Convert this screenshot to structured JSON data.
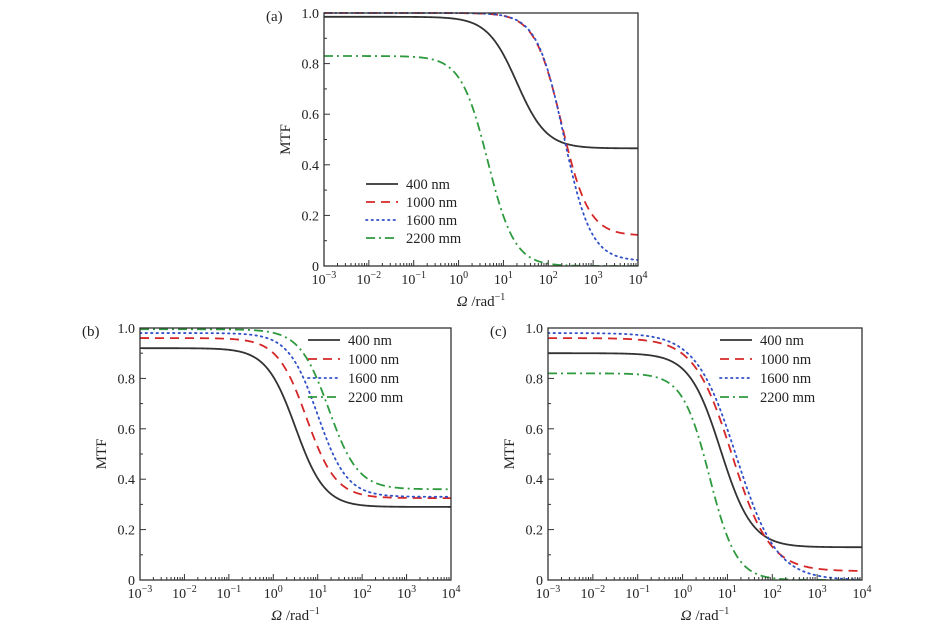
{
  "chart_data": [
    {
      "type": "line",
      "panel_label": "(a)",
      "ylabel": "MTF",
      "xlabel_symbol": "Ω",
      "xlabel_unit": " /rad",
      "xlabel_exp": "−1",
      "x_scale": "log",
      "xlim": [
        0.001,
        10000
      ],
      "ylim": [
        0,
        1.0
      ],
      "xticks": [
        {
          "base": "10",
          "exp": "−3"
        },
        {
          "base": "10",
          "exp": "−2"
        },
        {
          "base": "10",
          "exp": "−1"
        },
        {
          "base": "10",
          "exp": "0"
        },
        {
          "base": "10",
          "exp": "1"
        },
        {
          "base": "10",
          "exp": "2"
        },
        {
          "base": "10",
          "exp": "3"
        },
        {
          "base": "10",
          "exp": "4"
        }
      ],
      "yticks": [
        "0",
        "0.2",
        "0.4",
        "0.6",
        "0.8",
        "1.0"
      ],
      "legend_position": "lower-left",
      "series": [
        {
          "name": "400 nm",
          "style": "solid",
          "color": "#333333",
          "top": 0.985,
          "bottom": 0.465,
          "center_log10": 1.3,
          "width_decades": 0.33
        },
        {
          "name": "1000 nm",
          "style": "dash",
          "color": "#d62728",
          "top": 1.0,
          "bottom": 0.12,
          "center_log10": 2.3,
          "width_decades": 0.3
        },
        {
          "name": "1600 nm",
          "style": "dot",
          "color": "#3050c8",
          "top": 1.0,
          "bottom": 0.02,
          "center_log10": 2.35,
          "width_decades": 0.3
        },
        {
          "name": "2200 mm",
          "style": "dashdot",
          "color": "#2e9a3e",
          "top": 0.83,
          "bottom": 0.0,
          "center_log10": 0.65,
          "width_decades": 0.3
        }
      ]
    },
    {
      "type": "line",
      "panel_label": "(b)",
      "ylabel": "MTF",
      "xlabel_symbol": "Ω",
      "xlabel_unit": " /rad",
      "xlabel_exp": "−1",
      "x_scale": "log",
      "xlim": [
        0.001,
        10000
      ],
      "ylim": [
        0,
        1.0
      ],
      "xticks": [
        {
          "base": "10",
          "exp": "−3"
        },
        {
          "base": "10",
          "exp": "−2"
        },
        {
          "base": "10",
          "exp": "−1"
        },
        {
          "base": "10",
          "exp": "0"
        },
        {
          "base": "10",
          "exp": "1"
        },
        {
          "base": "10",
          "exp": "2"
        },
        {
          "base": "10",
          "exp": "3"
        },
        {
          "base": "10",
          "exp": "4"
        }
      ],
      "yticks": [
        "0",
        "0.2",
        "0.4",
        "0.6",
        "0.8",
        "1.0"
      ],
      "legend_position": "top-right",
      "series": [
        {
          "name": "400 nm",
          "style": "solid",
          "color": "#333333",
          "top": 0.92,
          "bottom": 0.29,
          "center_log10": 0.5,
          "width_decades": 0.33
        },
        {
          "name": "1000 nm",
          "style": "dash",
          "color": "#d62728",
          "top": 0.96,
          "bottom": 0.325,
          "center_log10": 0.75,
          "width_decades": 0.33
        },
        {
          "name": "1600 nm",
          "style": "dot",
          "color": "#3050c8",
          "top": 0.98,
          "bottom": 0.33,
          "center_log10": 1.0,
          "width_decades": 0.33
        },
        {
          "name": "2200 mm",
          "style": "dashdot",
          "color": "#2e9a3e",
          "top": 0.995,
          "bottom": 0.36,
          "center_log10": 1.25,
          "width_decades": 0.33
        }
      ]
    },
    {
      "type": "line",
      "panel_label": "(c)",
      "ylabel": "MTF",
      "xlabel_symbol": "Ω",
      "xlabel_unit": " /rad",
      "xlabel_exp": "−1",
      "x_scale": "log",
      "xlim": [
        0.001,
        10000
      ],
      "ylim": [
        0,
        1.0
      ],
      "xticks": [
        {
          "base": "10",
          "exp": "−3"
        },
        {
          "base": "10",
          "exp": "−2"
        },
        {
          "base": "10",
          "exp": "−1"
        },
        {
          "base": "10",
          "exp": "0"
        },
        {
          "base": "10",
          "exp": "1"
        },
        {
          "base": "10",
          "exp": "2"
        },
        {
          "base": "10",
          "exp": "3"
        },
        {
          "base": "10",
          "exp": "4"
        }
      ],
      "yticks": [
        "0",
        "0.2",
        "0.4",
        "0.6",
        "0.8",
        "1.0"
      ],
      "legend_position": "top-right",
      "series": [
        {
          "name": "400 nm",
          "style": "solid",
          "color": "#333333",
          "top": 0.9,
          "bottom": 0.13,
          "center_log10": 0.85,
          "width_decades": 0.35
        },
        {
          "name": "1000 nm",
          "style": "dash",
          "color": "#d62728",
          "top": 0.96,
          "bottom": 0.035,
          "center_log10": 1.1,
          "width_decades": 0.42
        },
        {
          "name": "1600 nm",
          "style": "dot",
          "color": "#3050c8",
          "top": 0.98,
          "bottom": 0.0,
          "center_log10": 1.2,
          "width_decades": 0.45
        },
        {
          "name": "2200 mm",
          "style": "dashdot",
          "color": "#2e9a3e",
          "top": 0.82,
          "bottom": 0.0,
          "center_log10": 0.6,
          "width_decades": 0.3
        }
      ]
    }
  ]
}
